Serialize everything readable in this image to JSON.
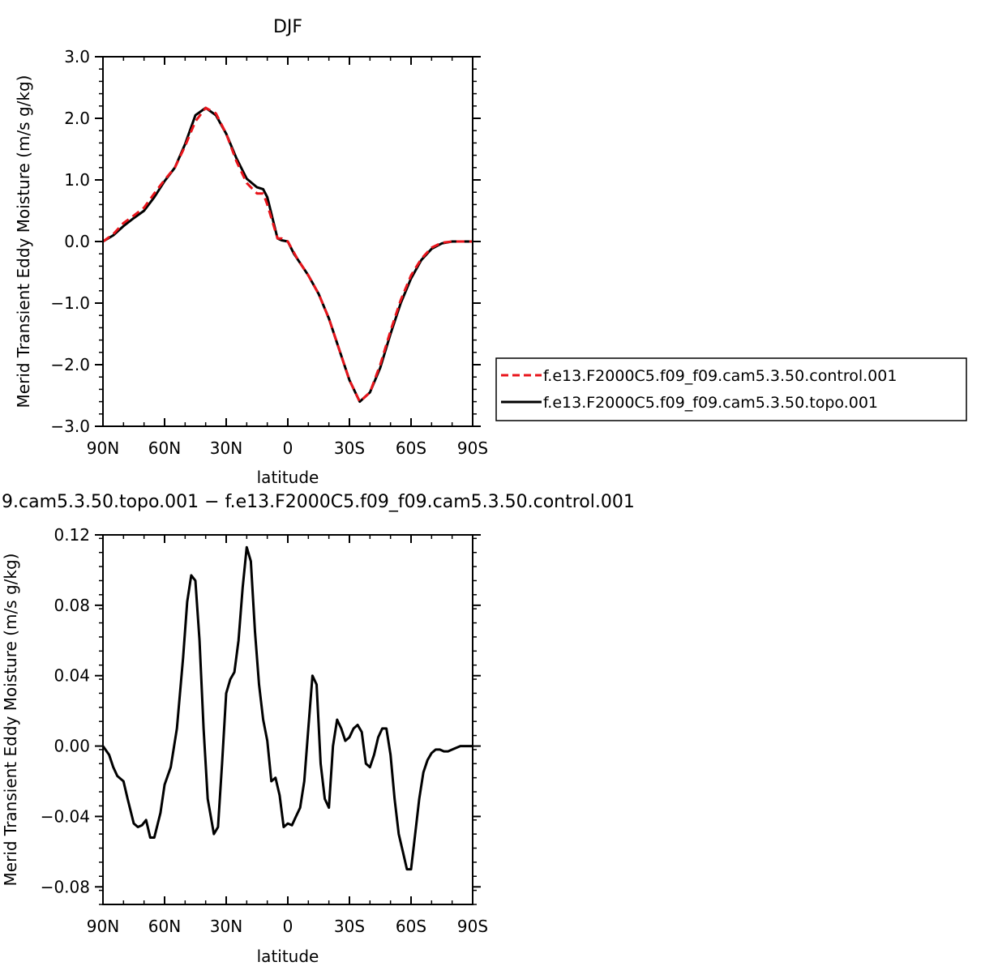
{
  "chart_data": [
    {
      "type": "line",
      "title": "DJF",
      "xlabel": "latitude",
      "ylabel": "Merid Transient Eddy Moisture (m/s g/kg)",
      "xlim": [
        90,
        -90
      ],
      "ylim": [
        -3.0,
        3.0
      ],
      "x_ticks": [
        90,
        60,
        30,
        0,
        -30,
        -60,
        -90
      ],
      "x_tick_labels": [
        "90N",
        "60N",
        "30N",
        "0",
        "30S",
        "60S",
        "90S"
      ],
      "y_ticks": [
        -3.0,
        -2.0,
        -1.0,
        0.0,
        1.0,
        2.0,
        3.0
      ],
      "y_tick_labels": [
        "−3.0",
        "−2.0",
        "−1.0",
        "0.0",
        "1.0",
        "2.0",
        "3.0"
      ],
      "grid": false,
      "legend_position": "right",
      "series": [
        {
          "name": "f.e13.F2000C5.f09_f09.cam5.3.50.control.001",
          "color": "#e8141b",
          "dash": "dashed",
          "x": [
            90,
            85,
            80,
            75,
            70,
            65,
            60,
            55,
            50,
            45,
            40,
            35,
            30,
            25,
            20,
            15,
            12,
            10,
            5,
            3,
            0,
            -3,
            -5,
            -10,
            -15,
            -20,
            -25,
            -30,
            -35,
            -40,
            -45,
            -50,
            -55,
            -60,
            -65,
            -70,
            -75,
            -80,
            -85,
            -90
          ],
          "y": [
            0.0,
            0.12,
            0.3,
            0.42,
            0.55,
            0.78,
            1.0,
            1.2,
            1.55,
            1.95,
            2.17,
            2.08,
            1.75,
            1.3,
            0.95,
            0.78,
            0.78,
            0.6,
            0.05,
            0.05,
            0.0,
            -0.18,
            -0.3,
            -0.55,
            -0.85,
            -1.25,
            -1.75,
            -2.25,
            -2.6,
            -2.45,
            -2.0,
            -1.45,
            -0.95,
            -0.55,
            -0.28,
            -0.1,
            -0.02,
            0.0,
            0.0,
            0.0
          ]
        },
        {
          "name": "f.e13.F2000C5.f09_f09.cam5.3.50.topo.001",
          "color": "#000000",
          "dash": "solid",
          "x": [
            90,
            85,
            80,
            75,
            70,
            65,
            60,
            55,
            50,
            45,
            40,
            35,
            30,
            25,
            20,
            15,
            12,
            10,
            5,
            3,
            0,
            -3,
            -5,
            -10,
            -15,
            -20,
            -25,
            -30,
            -35,
            -40,
            -45,
            -50,
            -55,
            -60,
            -65,
            -70,
            -75,
            -80,
            -85,
            -90
          ],
          "y": [
            0.0,
            0.1,
            0.25,
            0.38,
            0.5,
            0.72,
            0.98,
            1.2,
            1.58,
            2.05,
            2.17,
            2.05,
            1.75,
            1.35,
            1.02,
            0.88,
            0.85,
            0.72,
            0.05,
            0.02,
            0.0,
            -0.2,
            -0.3,
            -0.55,
            -0.85,
            -1.25,
            -1.75,
            -2.25,
            -2.6,
            -2.45,
            -2.05,
            -1.5,
            -1.0,
            -0.6,
            -0.3,
            -0.12,
            -0.03,
            0.0,
            0.0,
            0.0
          ]
        }
      ]
    },
    {
      "type": "line",
      "title": "9.cam5.3.50.topo.001 − f.e13.F2000C5.f09_f09.cam5.3.50.control.001",
      "xlabel": "latitude",
      "ylabel": "Merid Transient Eddy Moisture (m/s g/kg)",
      "xlim": [
        90,
        -90
      ],
      "ylim": [
        -0.09,
        0.12
      ],
      "x_ticks": [
        90,
        60,
        30,
        0,
        -30,
        -60,
        -90
      ],
      "x_tick_labels": [
        "90N",
        "60N",
        "30N",
        "0",
        "30S",
        "60S",
        "90S"
      ],
      "y_ticks": [
        -0.08,
        -0.04,
        0.0,
        0.04,
        0.08,
        0.12
      ],
      "y_tick_labels": [
        "−0.08",
        "−0.04",
        "0.00",
        "0.04",
        "0.08",
        "0.12"
      ],
      "grid": false,
      "series": [
        {
          "color": "#000000",
          "dash": "solid",
          "x": [
            90,
            87,
            85,
            83,
            80,
            78,
            75,
            73,
            71,
            69,
            67,
            65,
            62,
            60,
            57,
            54,
            51,
            49,
            47,
            45,
            43,
            41,
            39,
            36,
            34,
            32,
            30,
            28,
            26,
            24,
            22,
            20,
            18,
            16,
            14,
            12,
            10,
            8,
            6,
            4,
            2,
            0,
            -2,
            -4,
            -6,
            -8,
            -10,
            -12,
            -14,
            -16,
            -18,
            -20,
            -22,
            -24,
            -26,
            -28,
            -30,
            -32,
            -34,
            -36,
            -38,
            -40,
            -42,
            -44,
            -46,
            -48,
            -50,
            -52,
            -54,
            -56,
            -58,
            -60,
            -62,
            -64,
            -66,
            -68,
            -70,
            -72,
            -74,
            -76,
            -78,
            -80,
            -82,
            -84,
            -86,
            -88,
            -90
          ],
          "y": [
            0.0,
            -0.005,
            -0.012,
            -0.017,
            -0.02,
            -0.03,
            -0.044,
            -0.046,
            -0.045,
            -0.042,
            -0.052,
            -0.052,
            -0.038,
            -0.022,
            -0.012,
            0.01,
            0.05,
            0.082,
            0.097,
            0.094,
            0.06,
            0.01,
            -0.03,
            -0.05,
            -0.046,
            -0.01,
            0.03,
            0.038,
            0.042,
            0.06,
            0.09,
            0.113,
            0.105,
            0.065,
            0.035,
            0.015,
            0.003,
            -0.02,
            -0.018,
            -0.028,
            -0.046,
            -0.044,
            -0.045,
            -0.04,
            -0.035,
            -0.02,
            0.01,
            0.04,
            0.035,
            -0.01,
            -0.03,
            -0.035,
            0.0,
            0.015,
            0.01,
            0.003,
            0.005,
            0.01,
            0.012,
            0.008,
            -0.01,
            -0.012,
            -0.005,
            0.005,
            0.01,
            0.01,
            -0.005,
            -0.03,
            -0.05,
            -0.06,
            -0.07,
            -0.07,
            -0.05,
            -0.03,
            -0.015,
            -0.008,
            -0.004,
            -0.002,
            -0.002,
            -0.003,
            -0.003,
            -0.002,
            -0.001,
            0.0,
            0.0,
            0.0,
            0.0
          ]
        }
      ]
    }
  ]
}
